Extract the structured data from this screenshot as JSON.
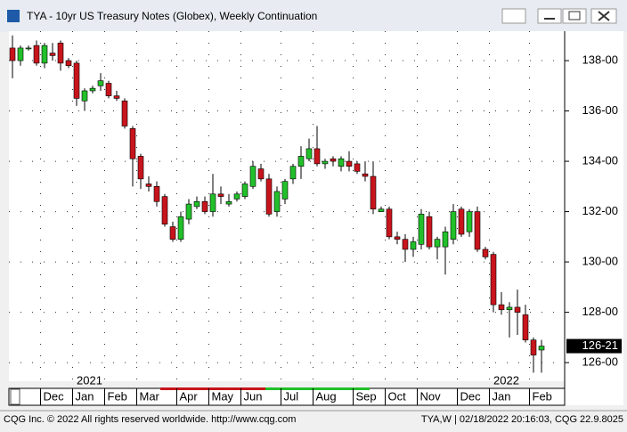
{
  "window_title": "TYA - 10yr US Treasury Notes (Globex), Weekly Continuation",
  "chart_data": {
    "type": "candlestick",
    "title": "TYA - 10yr US Treasury Notes (Globex), Weekly Continuation",
    "up_color": "#22c02a",
    "down_color": "#c8141c",
    "grid": true,
    "ylim": [
      125.26,
      139.17
    ],
    "yticks": [
      {
        "value": 126,
        "label": "126-00"
      },
      {
        "value": 128,
        "label": "128-00"
      },
      {
        "value": 130,
        "label": "130-00"
      },
      {
        "value": 132,
        "label": "132-00"
      },
      {
        "value": 134,
        "label": "134-00"
      },
      {
        "value": 136,
        "label": "136-00"
      },
      {
        "value": 138,
        "label": "138-00"
      }
    ],
    "xticks": [
      {
        "value": 4,
        "label": "Dec"
      },
      {
        "value": 8,
        "label": "Jan"
      },
      {
        "value": 12,
        "label": "Feb"
      },
      {
        "value": 16,
        "label": "Mar"
      },
      {
        "value": 21,
        "label": "Apr"
      },
      {
        "value": 25,
        "label": "May"
      },
      {
        "value": 29,
        "label": "Jun"
      },
      {
        "value": 34,
        "label": "Jul"
      },
      {
        "value": 38,
        "label": "Aug"
      },
      {
        "value": 43,
        "label": "Sep"
      },
      {
        "value": 47,
        "label": "Oct"
      },
      {
        "value": 51,
        "label": "Nov"
      },
      {
        "value": 56,
        "label": "Dec"
      },
      {
        "value": 60,
        "label": "Jan"
      },
      {
        "value": 65,
        "label": "Feb"
      }
    ],
    "year_labels": [
      {
        "value": 8,
        "label": "2021"
      },
      {
        "value": 60,
        "label": "2022"
      }
    ],
    "last_price": {
      "value": 126.65625,
      "label": "126-21"
    },
    "open": [
      138.5,
      138.0,
      138.5,
      138.6,
      137.9,
      138.3,
      138.7,
      138.0,
      137.9,
      136.4,
      136.8,
      137.0,
      137.1,
      136.6,
      136.4,
      135.3,
      134.2,
      133.1,
      133.0,
      132.6,
      131.4,
      130.9,
      131.7,
      132.2,
      132.4,
      132.0,
      132.7,
      132.3,
      132.5,
      132.6,
      133.0,
      133.7,
      133.3,
      132.0,
      132.5,
      133.3,
      133.8,
      134.1,
      134.5,
      133.9,
      134.1,
      133.8,
      134.0,
      133.9,
      133.5,
      133.4,
      132.0,
      132.1,
      131.0,
      130.9,
      130.5,
      130.7,
      131.8,
      130.6,
      130.6,
      130.9,
      132.1,
      131.2,
      132.0,
      130.5,
      130.3,
      128.3,
      128.1,
      128.2,
      127.9,
      126.9,
      126.5
    ],
    "high": [
      139.0,
      138.6,
      138.6,
      138.8,
      138.7,
      138.7,
      138.8,
      138.1,
      138.0,
      136.9,
      137.0,
      137.5,
      137.2,
      136.8,
      136.5,
      135.4,
      134.3,
      133.4,
      133.2,
      132.7,
      131.6,
      132.0,
      132.5,
      132.6,
      132.6,
      133.5,
      133.0,
      132.7,
      132.8,
      133.2,
      134.0,
      133.9,
      133.5,
      133.0,
      133.3,
      133.9,
      134.6,
      134.9,
      135.4,
      134.1,
      134.2,
      134.2,
      134.4,
      134.0,
      134.0,
      134.0,
      132.2,
      132.2,
      131.2,
      131.1,
      131.0,
      132.1,
      132.0,
      131.0,
      131.4,
      132.3,
      132.2,
      132.1,
      132.2,
      130.6,
      130.4,
      128.8,
      128.4,
      128.9,
      128.3,
      127.0,
      126.9
    ],
    "low": [
      137.3,
      137.8,
      138.4,
      137.8,
      137.7,
      138.0,
      137.6,
      137.7,
      136.2,
      136.0,
      136.7,
      136.8,
      136.5,
      136.4,
      135.3,
      133.0,
      132.9,
      132.8,
      132.2,
      131.4,
      130.8,
      130.8,
      131.5,
      132.1,
      131.9,
      131.8,
      132.3,
      132.2,
      132.4,
      132.5,
      132.9,
      133.2,
      131.8,
      131.8,
      132.3,
      133.1,
      133.3,
      134.0,
      133.8,
      133.7,
      133.8,
      133.6,
      133.6,
      133.5,
      133.2,
      131.9,
      132.0,
      130.9,
      130.7,
      130.0,
      130.2,
      130.5,
      130.5,
      130.1,
      129.5,
      130.7,
      131.0,
      131.0,
      130.4,
      130.1,
      128.0,
      127.9,
      127.0,
      127.1,
      126.8,
      125.6,
      125.6
    ],
    "close": [
      138.0,
      138.5,
      138.5,
      137.9,
      138.6,
      138.2,
      137.9,
      137.8,
      136.5,
      136.8,
      136.9,
      137.2,
      136.6,
      136.5,
      135.4,
      134.1,
      133.3,
      133.0,
      132.4,
      131.5,
      130.9,
      131.8,
      132.3,
      132.4,
      132.0,
      132.7,
      132.6,
      132.4,
      132.7,
      133.1,
      133.8,
      133.3,
      131.9,
      132.8,
      133.2,
      133.8,
      134.2,
      134.5,
      133.9,
      134.0,
      134.0,
      134.1,
      133.8,
      133.6,
      133.4,
      132.1,
      132.1,
      131.0,
      130.9,
      130.5,
      130.8,
      131.9,
      130.6,
      130.9,
      131.2,
      132.0,
      131.1,
      132.0,
      130.5,
      130.2,
      128.3,
      128.1,
      128.2,
      128.0,
      126.9,
      126.3,
      126.65625
    ]
  },
  "footer": {
    "left": "CQG Inc. © 2022 All rights reserved worldwide. http://www.cqg.com",
    "right": "TYA,W | 02/18/2022 20:16:03, CQG 22.9.8025"
  }
}
